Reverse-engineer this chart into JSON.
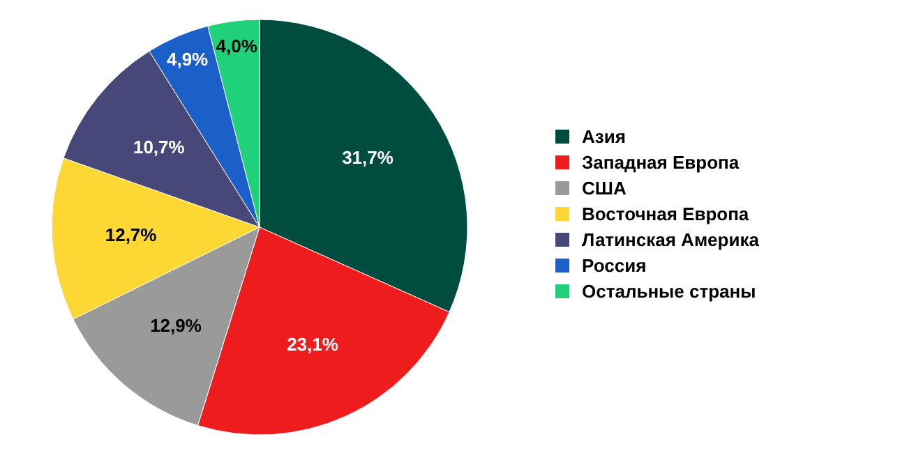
{
  "chart_data": {
    "type": "pie",
    "categories": [
      "Азия",
      "Западная Европа",
      "США",
      "Восточная Европа",
      "Латинская Америка",
      "Россия",
      "Остальные страны"
    ],
    "values": [
      31.7,
      23.1,
      12.9,
      12.7,
      10.7,
      4.9,
      4.0
    ],
    "colors": [
      "#004d3f",
      "#ee1c1c",
      "#9a9a9a",
      "#fdd835",
      "#47477a",
      "#1b5fc9",
      "#1fd27a"
    ],
    "value_labels": [
      "31,7%",
      "23,1%",
      "12,9%",
      "12,7%",
      "10,7%",
      "4,9%",
      "4,0%"
    ],
    "legend": "right"
  }
}
